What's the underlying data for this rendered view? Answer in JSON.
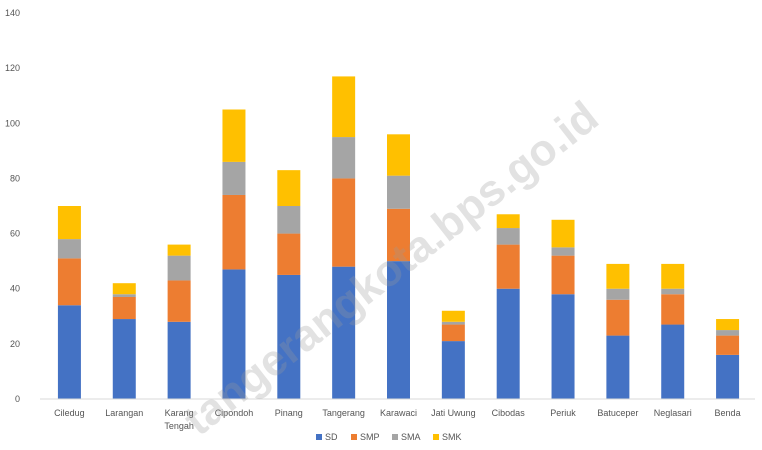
{
  "chart_data": {
    "type": "bar",
    "stacked": true,
    "title": "",
    "xlabel": "",
    "ylabel": "",
    "ylim": [
      0,
      140
    ],
    "yticks": [
      "0",
      "20",
      "40",
      "60",
      "80",
      "100",
      "120",
      "140"
    ],
    "grid": false,
    "legend_position": "bottom",
    "categories": [
      "Ciledug",
      "Larangan",
      "Karang Tengah",
      "Cipondoh",
      "Pinang",
      "Tangerang",
      "Karawaci",
      "Jati Uwung",
      "Cibodas",
      "Periuk",
      "Batuceper",
      "Neglasari",
      "Benda"
    ],
    "series": [
      {
        "name": "SD",
        "color": "#4472c4",
        "values": [
          34,
          29,
          28,
          47,
          45,
          48,
          50,
          21,
          40,
          38,
          23,
          27,
          16
        ]
      },
      {
        "name": "SMP",
        "color": "#ed7d31",
        "values": [
          17,
          8,
          15,
          27,
          15,
          32,
          19,
          6,
          16,
          14,
          13,
          11,
          7
        ]
      },
      {
        "name": "SMA",
        "color": "#a5a5a5",
        "values": [
          7,
          1,
          9,
          12,
          10,
          15,
          12,
          1,
          6,
          3,
          4,
          2,
          2
        ]
      },
      {
        "name": "SMK",
        "color": "#ffc000",
        "values": [
          12,
          4,
          4,
          19,
          13,
          22,
          15,
          4,
          5,
          10,
          9,
          9,
          4
        ]
      }
    ]
  },
  "watermark": "tangerangkota.bps.go.id"
}
